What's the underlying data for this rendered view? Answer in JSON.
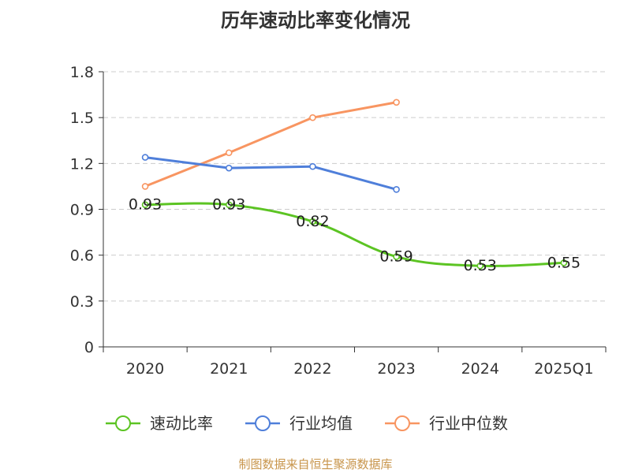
{
  "chart_data": {
    "type": "line",
    "title": "历年速动比率变化情况",
    "categories": [
      "2020",
      "2021",
      "2022",
      "2023",
      "2024",
      "2025Q1"
    ],
    "ylim": [
      0,
      1.8
    ],
    "yticks": [
      "0",
      "0.3",
      "0.6",
      "0.9",
      "1.2",
      "1.5",
      "1.8"
    ],
    "grid": true,
    "legend_position": "bottom",
    "series": [
      {
        "name": "速动比率",
        "color": "#5cc423",
        "smooth": true,
        "show_labels": true,
        "values": [
          0.93,
          0.93,
          0.82,
          0.59,
          0.53,
          0.55
        ],
        "labels": [
          "0.93",
          "0.93",
          "0.82",
          "0.59",
          "0.53",
          "0.55"
        ]
      },
      {
        "name": "行业均值",
        "color": "#4f7fda",
        "smooth": false,
        "show_labels": false,
        "values": [
          1.24,
          1.17,
          1.18,
          1.03,
          null,
          null
        ]
      },
      {
        "name": "行业中位数",
        "color": "#f89561",
        "smooth": false,
        "show_labels": false,
        "values": [
          1.05,
          1.27,
          1.5,
          1.6,
          null,
          null
        ]
      }
    ]
  },
  "source_text": "制图数据来自恒生聚源数据库"
}
